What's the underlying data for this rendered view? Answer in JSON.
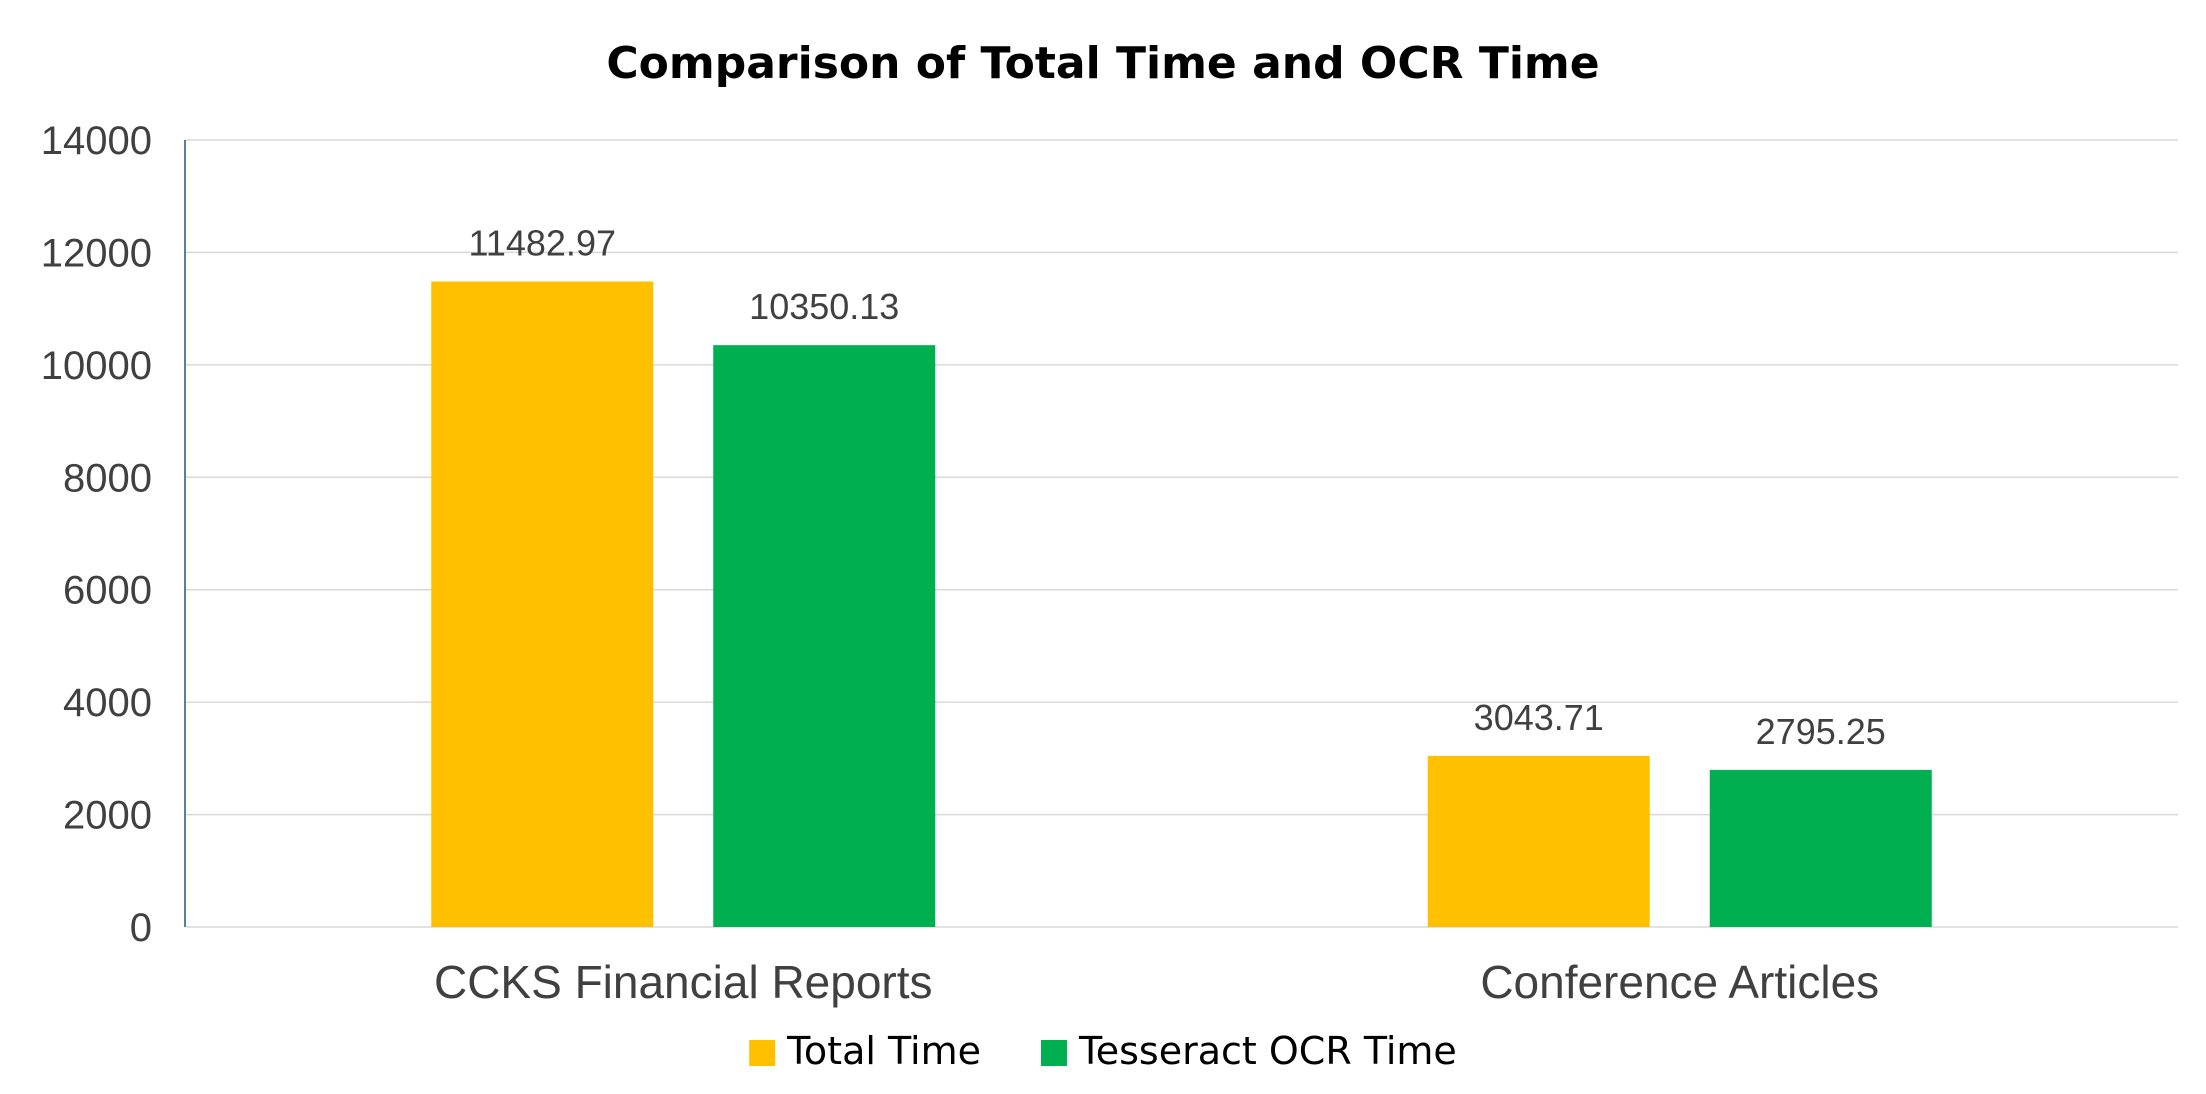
{
  "chart_data": {
    "type": "bar",
    "title": "Comparison of Total Time and OCR Time",
    "xlabel": "",
    "ylabel": "",
    "categories": [
      "CCKS Financial Reports",
      "Conference Articles"
    ],
    "series": [
      {
        "name": "Total Time",
        "color": "#FFC000",
        "values": [
          11482.97,
          3043.71
        ],
        "labels": [
          "11482.97",
          "3043.71"
        ]
      },
      {
        "name": "Tesseract OCR Time",
        "color": "#00B050",
        "values": [
          10350.13,
          2795.25
        ],
        "labels": [
          "10350.13",
          "2795.25"
        ]
      }
    ],
    "ylim": [
      0,
      14000
    ],
    "yticks": [
      0,
      2000,
      4000,
      6000,
      8000,
      10000,
      12000,
      14000
    ],
    "grid": true,
    "legend": "bottom"
  }
}
